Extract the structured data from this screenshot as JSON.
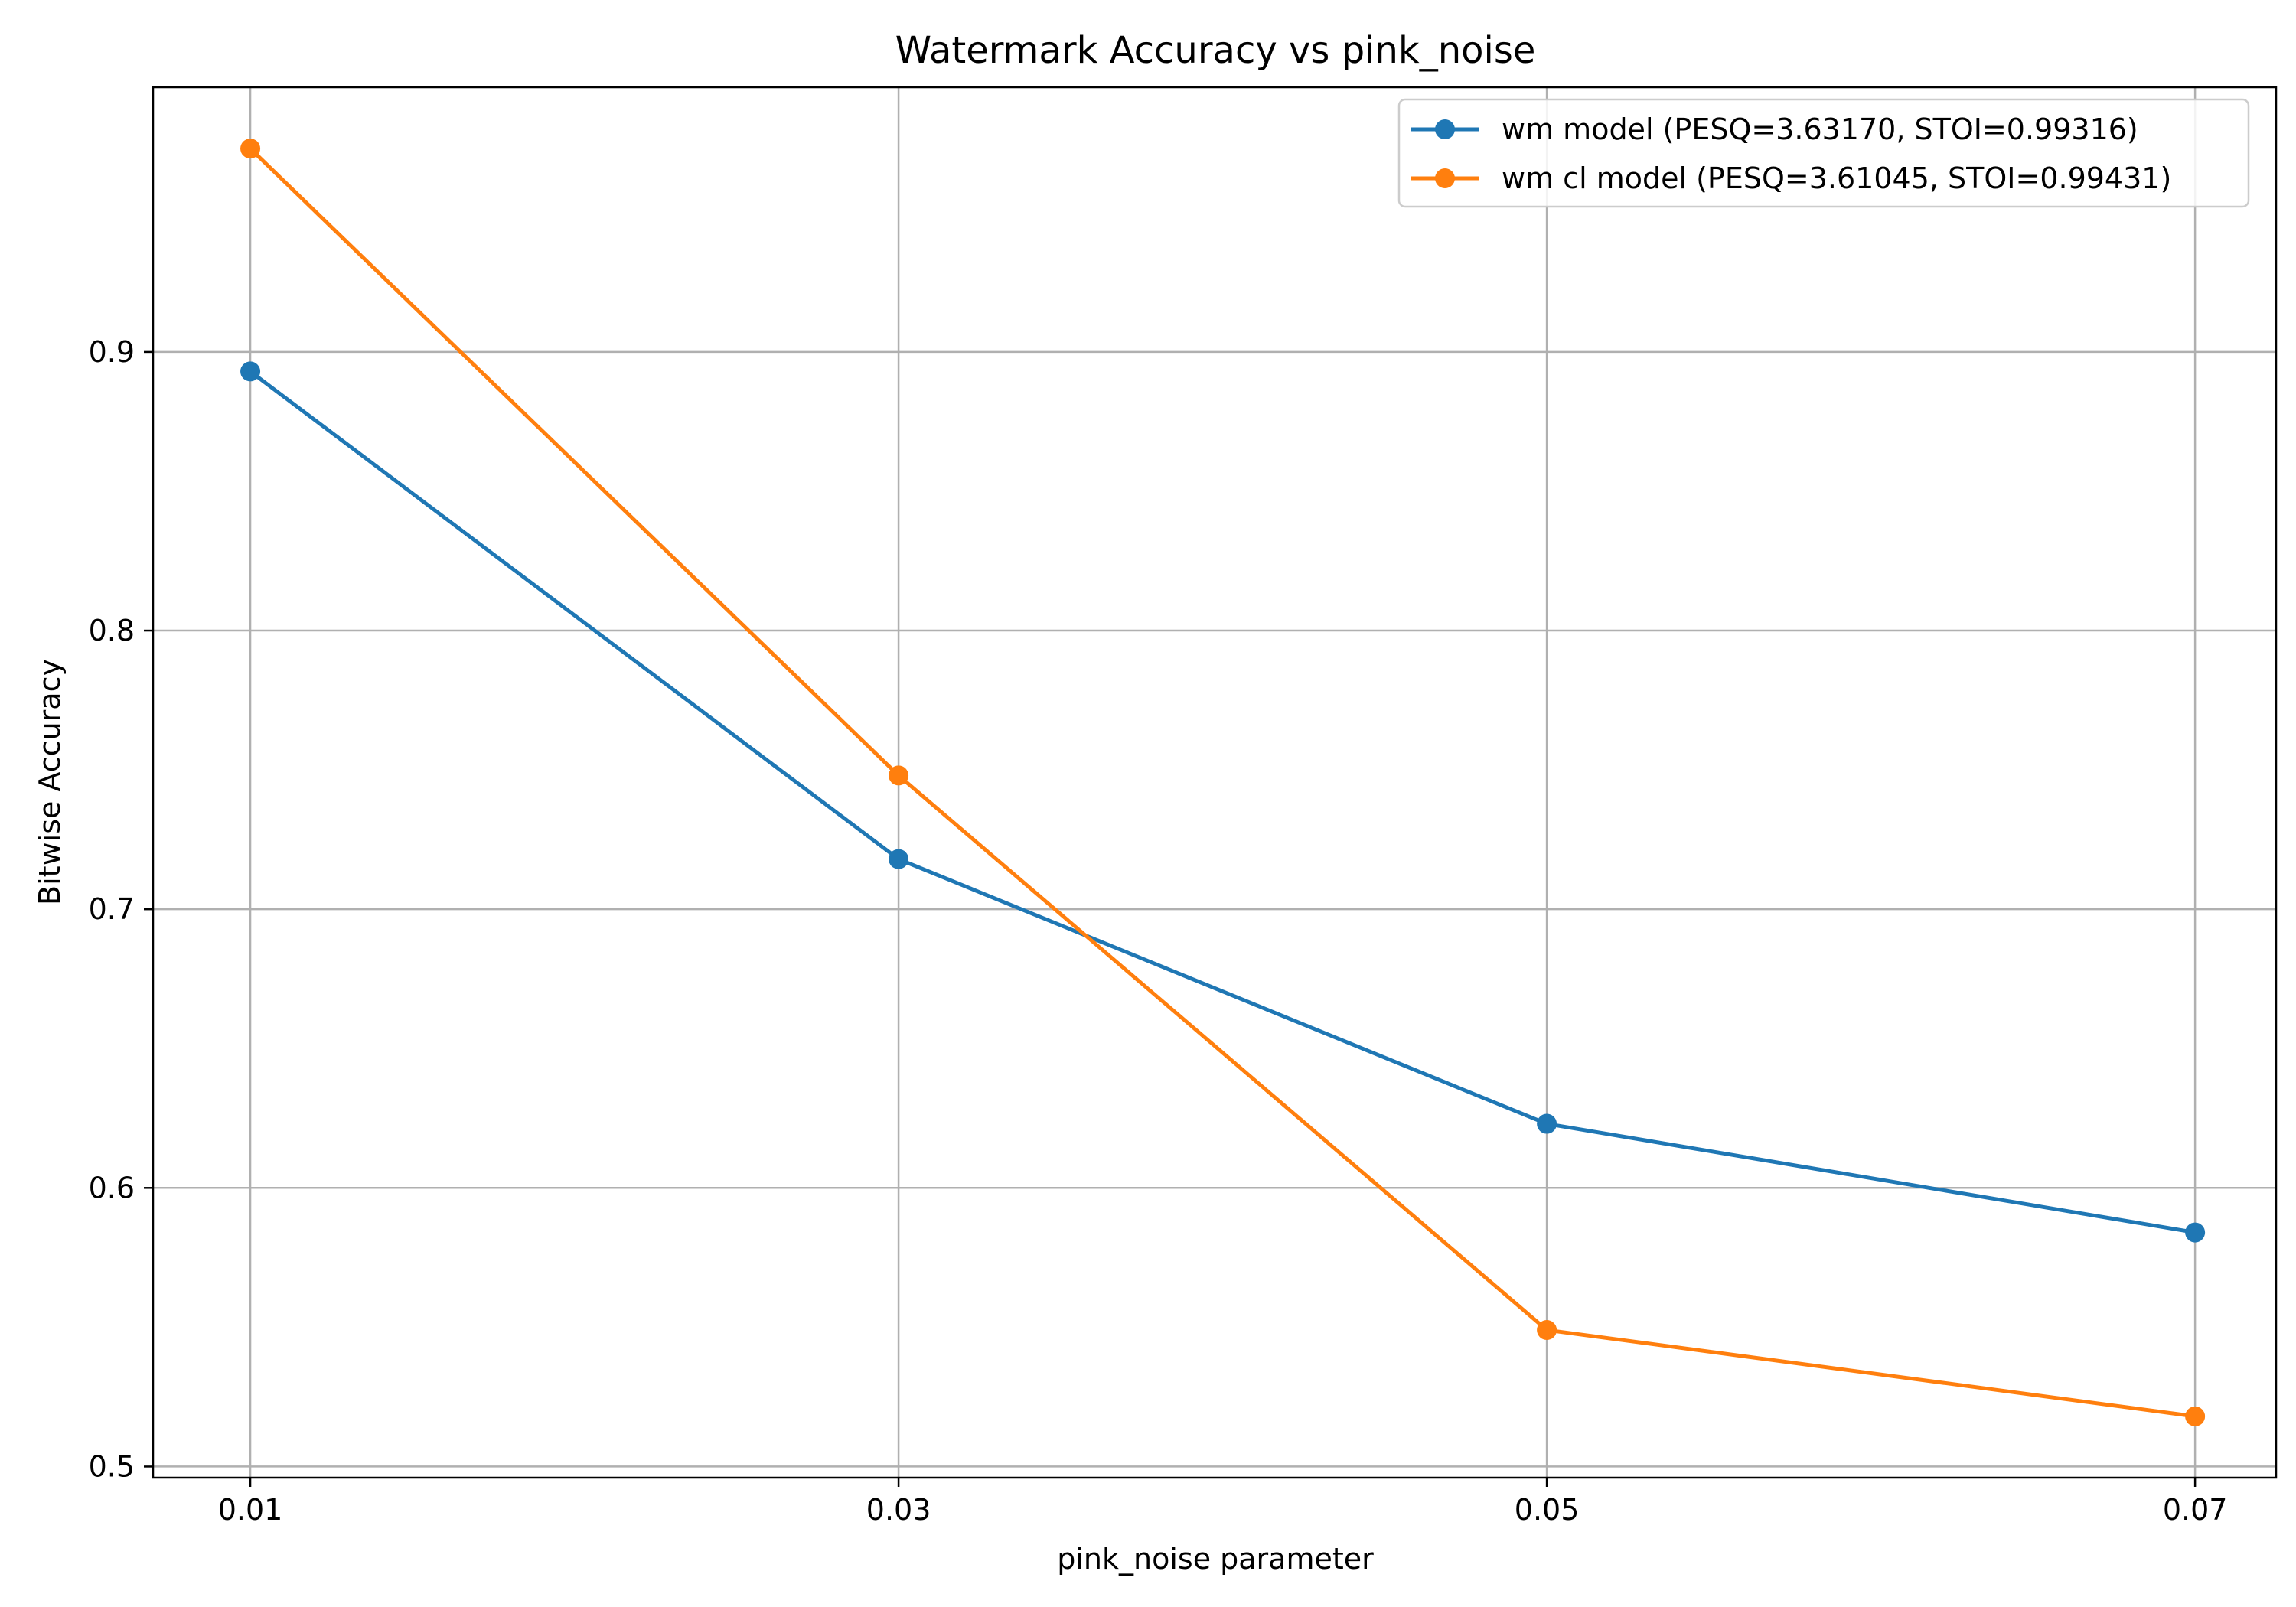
{
  "chart_data": {
    "type": "line",
    "title": "Watermark Accuracy vs pink_noise",
    "xlabel": "pink_noise parameter",
    "ylabel": "Bitwise Accuracy",
    "x": [
      0.01,
      0.03,
      0.05,
      0.07
    ],
    "x_tick_labels": [
      "0.01",
      "0.03",
      "0.05",
      "0.07"
    ],
    "xlim": [
      0.007,
      0.0725
    ],
    "y_ticks": [
      0.5,
      0.6,
      0.7,
      0.8,
      0.9
    ],
    "y_tick_labels": [
      "0.5",
      "0.6",
      "0.7",
      "0.8",
      "0.9"
    ],
    "ylim": [
      0.496,
      0.995
    ],
    "grid": true,
    "legend_position": "top-right",
    "series": [
      {
        "name": "wm model (PESQ=3.63170, STOI=0.99316)",
        "color": "#1f77b4",
        "marker": "circle",
        "values": [
          0.893,
          0.718,
          0.623,
          0.584
        ]
      },
      {
        "name": "wm cl model (PESQ=3.61045, STOI=0.99431)",
        "color": "#ff7f0e",
        "marker": "circle",
        "values": [
          0.973,
          0.748,
          0.549,
          0.518
        ]
      }
    ]
  }
}
